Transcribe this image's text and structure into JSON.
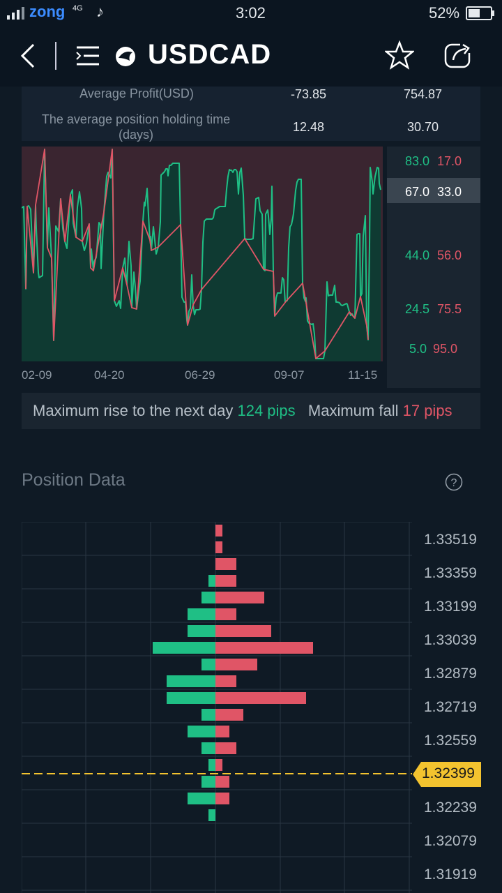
{
  "status_bar": {
    "carrier": "zong",
    "network": "4G",
    "time": "3:02",
    "battery": "52%"
  },
  "header": {
    "title": "USDCAD",
    "icons": [
      "back-arrow-icon",
      "menu-icon",
      "logo-icon",
      "star-icon",
      "share-icon"
    ]
  },
  "stats": {
    "rows": [
      {
        "label": "Average Profit(USD)",
        "value1": "-73.85",
        "value2": "754.87"
      },
      {
        "label": "The average position holding time (days)",
        "value1": "12.48",
        "value2": "30.70"
      }
    ]
  },
  "sentiment_chart": {
    "x_ticks": [
      "02-09",
      "04-20",
      "06-29",
      "09-07",
      "11-15"
    ],
    "legend": [
      {
        "buy": "83.0",
        "sell": "17.0"
      },
      {
        "buy": "67.0",
        "sell": "33.0",
        "highlighted": true
      },
      {
        "buy": "44.0",
        "sell": "56.0"
      },
      {
        "buy": "24.5",
        "sell": "75.5"
      },
      {
        "buy": "5.0",
        "sell": "95.0"
      }
    ],
    "buy_color": "#1fbf85",
    "sell_color": "#e05566"
  },
  "pips": {
    "rise_label": "Maximum rise to the next day",
    "rise_value": "124 pips",
    "fall_label": "Maximum fall",
    "fall_value": "17 pips"
  },
  "position": {
    "title": "Position Data",
    "help_icon": "question-icon",
    "prices": [
      "1.33519",
      "1.33359",
      "1.33199",
      "1.33039",
      "1.32879",
      "1.32719",
      "1.32559",
      "1.32399",
      "1.32239",
      "1.32079",
      "1.31919"
    ],
    "current_price": "1.32399",
    "current_color": "#f3c32f"
  },
  "chart_data": {
    "type": "bar",
    "series": [
      {
        "name": "long",
        "values": [
          0,
          0,
          0,
          1,
          2,
          4,
          4,
          9,
          2,
          7,
          7,
          2,
          4,
          2,
          1,
          2,
          4,
          1
        ]
      },
      {
        "name": "short",
        "values": [
          1,
          1,
          3,
          3,
          7,
          3,
          8,
          14,
          6,
          3,
          13,
          4,
          2,
          3,
          1,
          2,
          2,
          0
        ]
      }
    ],
    "price_levels": [
      1.3355,
      1.3347,
      1.3339,
      1.3331,
      1.3323,
      1.3315,
      1.3307,
      1.3299,
      1.3291,
      1.3283,
      1.3275,
      1.3267,
      1.3259,
      1.3251,
      1.3243,
      1.3235,
      1.3227,
      1.3219
    ]
  }
}
